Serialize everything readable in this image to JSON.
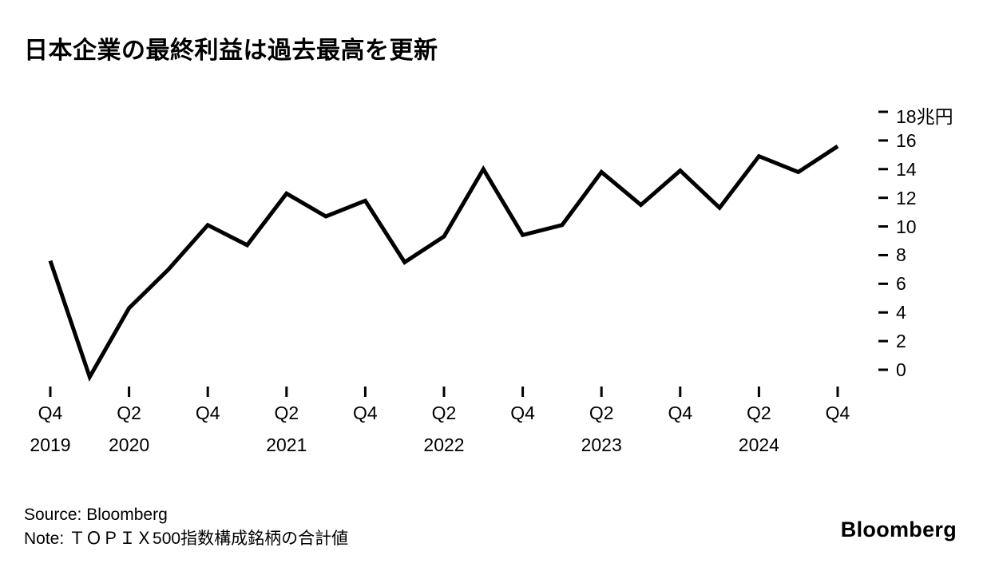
{
  "title": "日本企業の最終利益は過去最高を更新",
  "footer": {
    "source": "Source: Bloomberg",
    "note": "Note: ＴＯＰＩＸ500指数構成銘柄の合計値"
  },
  "logo": "Bloomberg",
  "chart_data": {
    "type": "line",
    "title": "日本企業の最終利益は過去最高を更新",
    "xlabel": "",
    "ylabel": "兆円",
    "ylim": [
      0,
      18
    ],
    "grid": false,
    "line_color": "#000000",
    "x": [
      "Q4 2019",
      "Q1 2020",
      "Q2 2020",
      "Q3 2020",
      "Q4 2020",
      "Q1 2021",
      "Q2 2021",
      "Q3 2021",
      "Q4 2021",
      "Q1 2022",
      "Q2 2022",
      "Q3 2022",
      "Q4 2022",
      "Q1 2023",
      "Q2 2023",
      "Q3 2023",
      "Q4 2023",
      "Q1 2024",
      "Q2 2024",
      "Q3 2024",
      "Q4 2024"
    ],
    "values": [
      7.6,
      -0.5,
      4.3,
      7.0,
      10.1,
      8.7,
      12.3,
      10.7,
      11.8,
      7.5,
      9.3,
      14.0,
      9.4,
      10.1,
      13.8,
      11.5,
      13.9,
      11.3,
      14.9,
      13.8,
      15.6
    ],
    "y_ticks": [
      {
        "value": 18,
        "label": "18兆円"
      },
      {
        "value": 16,
        "label": "16"
      },
      {
        "value": 14,
        "label": "14"
      },
      {
        "value": 12,
        "label": "12"
      },
      {
        "value": 10,
        "label": "10"
      },
      {
        "value": 8,
        "label": "8"
      },
      {
        "value": 6,
        "label": "6"
      },
      {
        "value": 4,
        "label": "4"
      },
      {
        "value": 2,
        "label": "2"
      },
      {
        "value": 0,
        "label": "0"
      }
    ],
    "x_ticks": [
      {
        "index": 0,
        "label": "Q4",
        "year": "2019"
      },
      {
        "index": 2,
        "label": "Q2",
        "year": "2020"
      },
      {
        "index": 4,
        "label": "Q4",
        "year": ""
      },
      {
        "index": 6,
        "label": "Q2",
        "year": "2021"
      },
      {
        "index": 8,
        "label": "Q4",
        "year": ""
      },
      {
        "index": 10,
        "label": "Q2",
        "year": "2022"
      },
      {
        "index": 12,
        "label": "Q4",
        "year": ""
      },
      {
        "index": 14,
        "label": "Q2",
        "year": "2023"
      },
      {
        "index": 16,
        "label": "Q4",
        "year": ""
      },
      {
        "index": 18,
        "label": "Q2",
        "year": "2024"
      },
      {
        "index": 20,
        "label": "Q4",
        "year": ""
      }
    ]
  }
}
